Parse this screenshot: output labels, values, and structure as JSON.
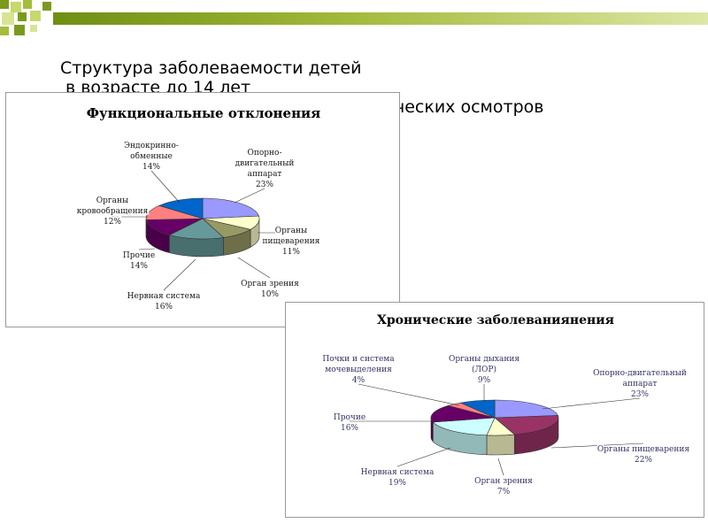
{
  "slide": {
    "title_line1": "Структура заболеваемости детей",
    "title_line2": "в возрасте до 14 лет",
    "title_line3": "ческих осмотров"
  },
  "colors": {
    "top_green_dark": "#7a9a1e",
    "top_green_light": "#c7d86e"
  },
  "chart_data": [
    {
      "type": "pie",
      "title": "Функциональные отклонения",
      "slices": [
        {
          "label": "Опорно-двигательный аппарат",
          "value": 23,
          "color": "#9999ff"
        },
        {
          "label": "Органы пищеварения",
          "value": 11,
          "color": "#ffffcc"
        },
        {
          "label": "Орган зрения",
          "value": 10,
          "color": "#999966"
        },
        {
          "label": "Нервная система",
          "value": 16,
          "color": "#669999"
        },
        {
          "label": "Прочие",
          "value": 14,
          "color": "#660066"
        },
        {
          "label": "Органы кровообращения",
          "value": 12,
          "color": "#ff8080"
        },
        {
          "label": "Эндокринно-обменные",
          "value": 14,
          "color": "#0066cc"
        }
      ],
      "labels_text": [
        {
          "lines": [
            "Опорно-",
            "двигательный",
            "аппарат"
          ],
          "pct": "23%"
        },
        {
          "lines": [
            "Органы",
            "пищеварения"
          ],
          "pct": "11%"
        },
        {
          "lines": [
            "Орган зрения"
          ],
          "pct": "10%"
        },
        {
          "lines": [
            "Нервная система"
          ],
          "pct": "16%"
        },
        {
          "lines": [
            "Прочие"
          ],
          "pct": "14%"
        },
        {
          "lines": [
            "Органы",
            "кровообращения"
          ],
          "pct": "12%"
        },
        {
          "lines": [
            "Эндокринно-",
            "обменные"
          ],
          "pct": "14%"
        }
      ]
    },
    {
      "type": "pie",
      "title": "Хронические заболеваниянения",
      "slices": [
        {
          "label": "Опорно-двигательный аппарат",
          "value": 23,
          "color": "#9999ff"
        },
        {
          "label": "Органы пищеварения",
          "value": 22,
          "color": "#993366"
        },
        {
          "label": "Орган зрения",
          "value": 7,
          "color": "#ffffcc"
        },
        {
          "label": "Нервная система",
          "value": 19,
          "color": "#ccffff"
        },
        {
          "label": "Прочие",
          "value": 16,
          "color": "#660066"
        },
        {
          "label": "Почки и система мочевыделения",
          "value": 4,
          "color": "#ff8080"
        },
        {
          "label": "Органы дыхания (ЛОР)",
          "value": 9,
          "color": "#0066cc"
        }
      ],
      "labels_text": [
        {
          "lines": [
            "Опорно-двигательный",
            "аппарат"
          ],
          "pct": "23%"
        },
        {
          "lines": [
            "Органы пищеварения"
          ],
          "pct": "22%"
        },
        {
          "lines": [
            "Орган зрения"
          ],
          "pct": "7%"
        },
        {
          "lines": [
            "Нервная система"
          ],
          "pct": "19%"
        },
        {
          "lines": [
            "Прочие"
          ],
          "pct": "16%"
        },
        {
          "lines": [
            "Почки и система",
            "мочевыделения"
          ],
          "pct": "4%"
        },
        {
          "lines": [
            "Органы дыхания",
            "(ЛОР)"
          ],
          "pct": "9%"
        }
      ]
    }
  ]
}
